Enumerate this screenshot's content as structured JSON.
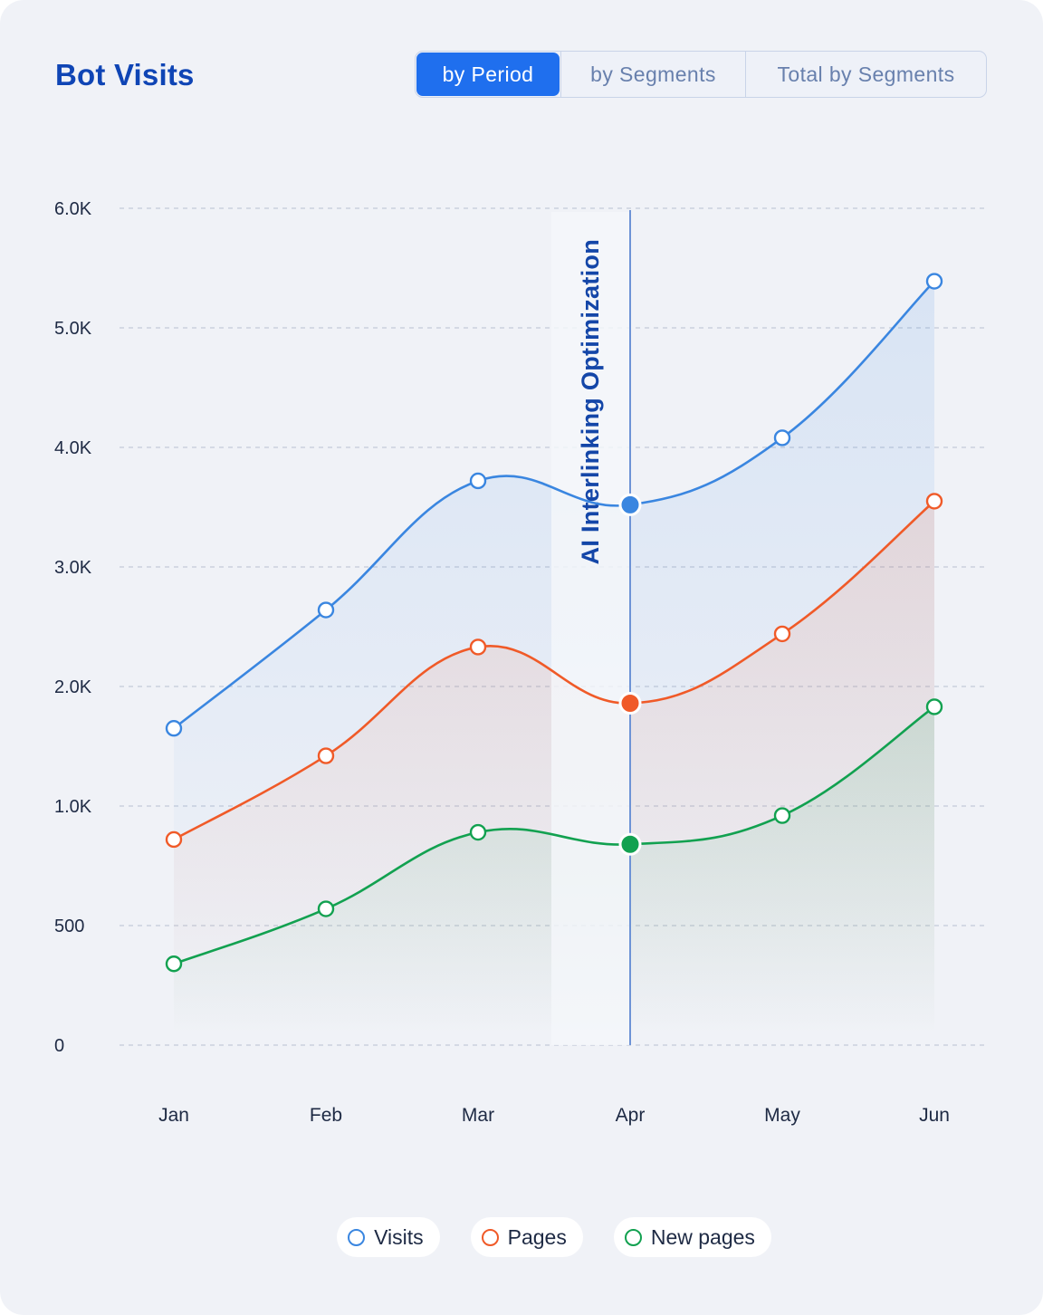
{
  "header": {
    "title": "Bot Visits",
    "tabs": [
      {
        "label": "by Period",
        "active": true
      },
      {
        "label": "by Segments",
        "active": false
      },
      {
        "label": "Total by Segments",
        "active": false
      }
    ]
  },
  "chart_data": {
    "type": "line",
    "title": "Bot Visits",
    "categories": [
      "Jan",
      "Feb",
      "Mar",
      "Apr",
      "May",
      "Jun"
    ],
    "ylim": [
      0,
      6000
    ],
    "yticks": [
      0,
      500,
      1000,
      2000,
      3000,
      4000,
      5000,
      6000
    ],
    "ytick_labels": [
      "0",
      "500",
      "1.0K",
      "2.0K",
      "3.0K",
      "4.0K",
      "5.0K",
      "6.0K"
    ],
    "grid": true,
    "legend_position": "bottom",
    "series": [
      {
        "name": "Visits",
        "color": "#3a86e0",
        "values": [
          1650,
          2640,
          3720,
          3520,
          4080,
          5390
        ]
      },
      {
        "name": "Pages",
        "color": "#f05a28",
        "values": [
          860,
          1420,
          2330,
          1860,
          2440,
          3550
        ]
      },
      {
        "name": "New pages",
        "color": "#12a150",
        "values": [
          340,
          570,
          890,
          840,
          960,
          1830
        ]
      }
    ],
    "annotation": {
      "label": "AI Interlinking Optimization",
      "at": "Apr"
    }
  }
}
